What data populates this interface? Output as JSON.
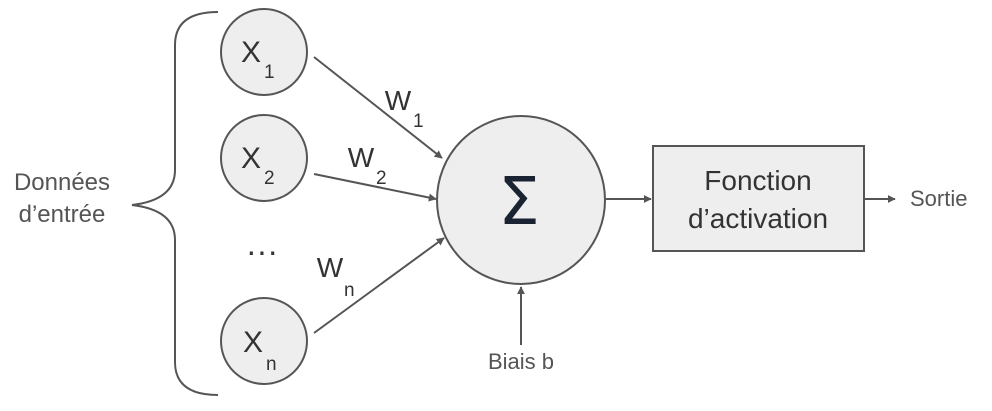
{
  "input_label": {
    "line1": "Données",
    "line2": "d’entrée"
  },
  "inputs": [
    {
      "var": "X",
      "sub": "1",
      "weight": "W",
      "weight_sub": "1"
    },
    {
      "var": "X",
      "sub": "2",
      "weight": "W",
      "weight_sub": "2"
    },
    {
      "var": "X",
      "sub": "n",
      "weight": "W",
      "weight_sub": "n"
    }
  ],
  "ellipsis": "···",
  "sum_symbol": "Σ",
  "bias_label": "Biais b",
  "activation": {
    "line1": "Fonction",
    "line2": "d’activation"
  },
  "output_label": "Sortie",
  "colors": {
    "node_fill": "#eeeeee",
    "stroke": "#555555",
    "box_fill": "#eeeeee",
    "sum_text": "#1a2332"
  }
}
